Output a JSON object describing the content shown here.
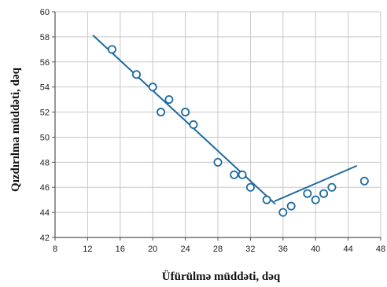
{
  "chart_data": {
    "type": "scatter",
    "title": "",
    "xlabel": "Üfürülmə müddəti, dəq",
    "ylabel": "Qızdırılma müddəti, dəq",
    "xlim": [
      8,
      48
    ],
    "ylim": [
      42,
      60
    ],
    "xticks": [
      8,
      12,
      16,
      20,
      24,
      28,
      32,
      36,
      40,
      44,
      48
    ],
    "yticks": [
      42,
      44,
      46,
      48,
      50,
      52,
      54,
      56,
      58,
      60
    ],
    "grid": true,
    "points": [
      {
        "x": 15,
        "y": 57
      },
      {
        "x": 18,
        "y": 55
      },
      {
        "x": 20,
        "y": 54
      },
      {
        "x": 21,
        "y": 52
      },
      {
        "x": 22,
        "y": 53
      },
      {
        "x": 24,
        "y": 52
      },
      {
        "x": 25,
        "y": 51
      },
      {
        "x": 28,
        "y": 48
      },
      {
        "x": 30,
        "y": 47
      },
      {
        "x": 31,
        "y": 47
      },
      {
        "x": 32,
        "y": 46
      },
      {
        "x": 34,
        "y": 45
      },
      {
        "x": 36,
        "y": 44
      },
      {
        "x": 37,
        "y": 44.5
      },
      {
        "x": 39,
        "y": 45.5
      },
      {
        "x": 40,
        "y": 45
      },
      {
        "x": 41,
        "y": 45.5
      },
      {
        "x": 42,
        "y": 46
      },
      {
        "x": 46,
        "y": 46.5
      }
    ],
    "trend_lines": [
      {
        "x": [
          12.7,
          35
        ],
        "y": [
          58.1,
          44.7
        ]
      },
      {
        "x": [
          35,
          45
        ],
        "y": [
          44.9,
          47.7
        ]
      }
    ],
    "colors": {
      "series": "#1f6a9e",
      "grid": "#c8c8c8",
      "axis": "#555555"
    }
  }
}
